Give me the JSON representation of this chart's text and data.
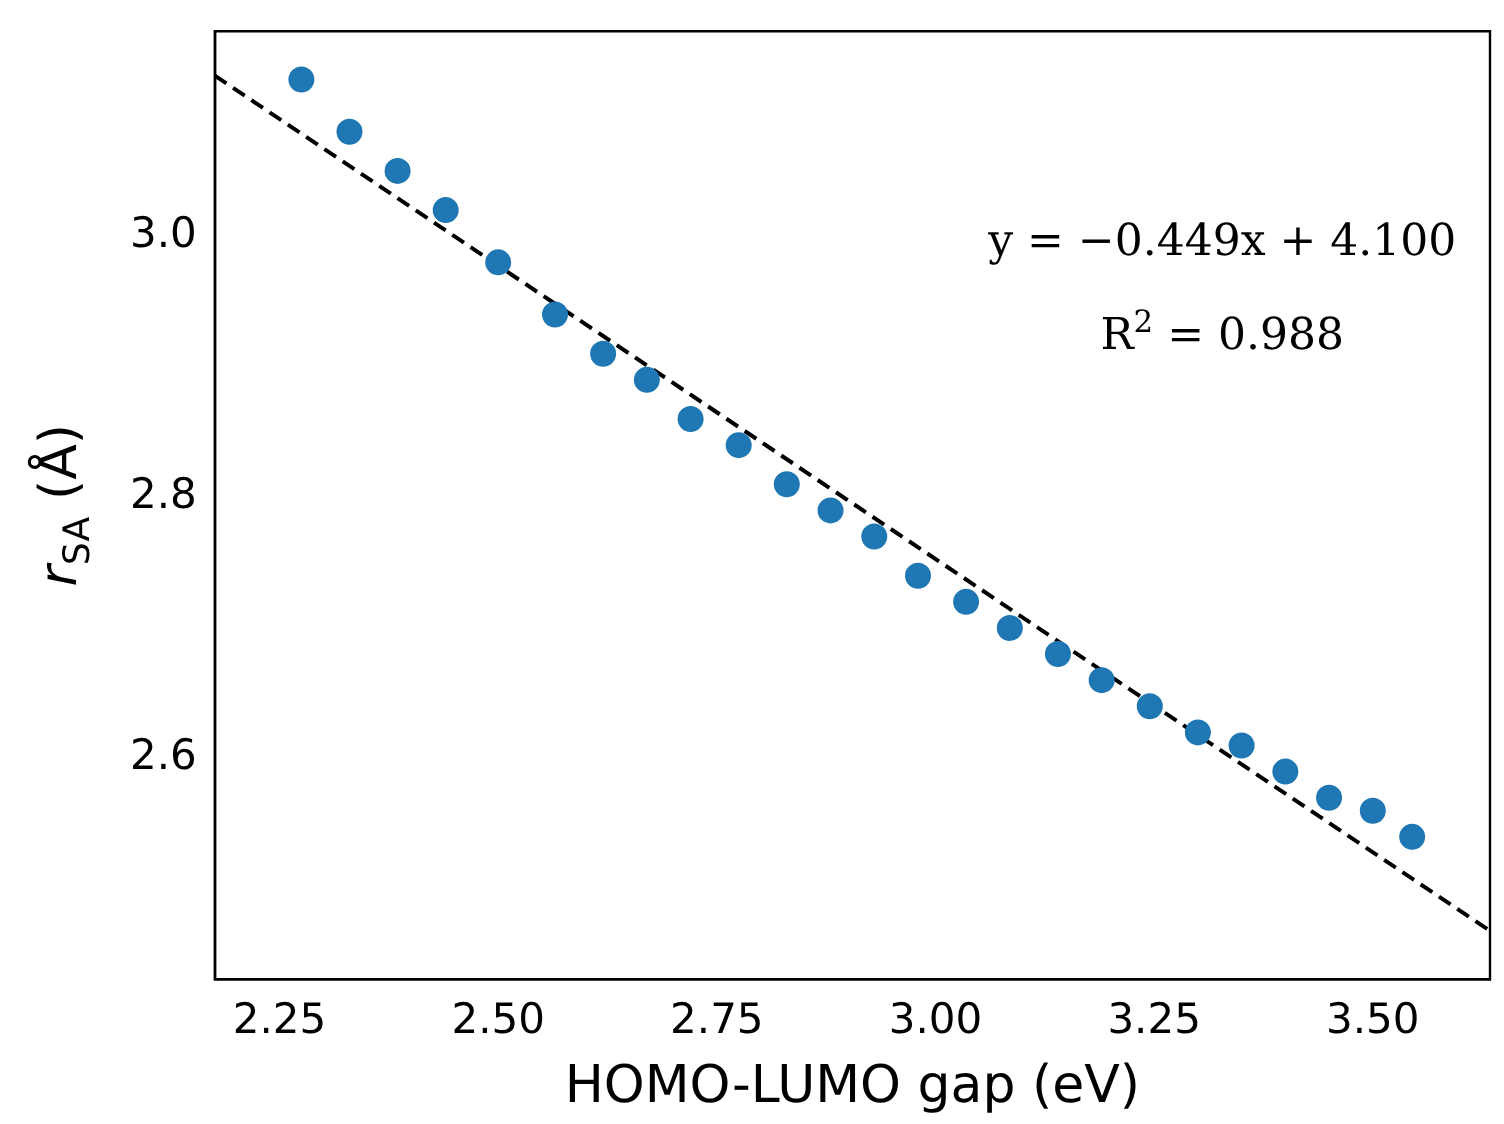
{
  "chart_data": {
    "type": "scatter",
    "xlabel": "HOMO-LUMO gap (eV)",
    "ylabel": "r$_{SA}$ (Å)",
    "x": [
      2.275,
      2.33,
      2.385,
      2.44,
      2.5,
      2.565,
      2.62,
      2.67,
      2.72,
      2.775,
      2.83,
      2.88,
      2.93,
      2.98,
      3.035,
      3.085,
      3.14,
      3.19,
      3.245,
      3.3,
      3.35,
      3.4,
      3.45,
      3.5,
      3.545
    ],
    "series": [
      {
        "color": "#1f77b4",
        "marker": "circle",
        "values": [
          3.12,
          3.08,
          3.05,
          3.02,
          2.98,
          2.94,
          2.91,
          2.89,
          2.86,
          2.84,
          2.81,
          2.79,
          2.77,
          2.74,
          2.72,
          2.7,
          2.68,
          2.66,
          2.64,
          2.62,
          2.61,
          2.59,
          2.57,
          2.56,
          2.54
        ]
      },
      {
        "type": "line",
        "color": "#000000",
        "line_style": "dashed",
        "marker": "none",
        "x": [
          2.176,
          3.634
        ],
        "values": [
          3.123,
          2.468
        ]
      }
    ],
    "xlim": [
      2.176,
      3.634
    ],
    "xticks": [
      2.25,
      {
        "value": 2.5,
        "label": "2.50"
      },
      2.75,
      {
        "value": 3,
        "label": "3.00"
      },
      3.25,
      {
        "value": 3.5,
        "label": "3.50"
      }
    ],
    "ylim": [
      2.431,
      3.157
    ],
    "yticks": [
      2.6,
      2.8,
      {
        "value": 3,
        "label": "3.0"
      }
    ],
    "annotations": [
      "y = −0.449x + 4.100",
      "R$^{2}$ = 0.988"
    ],
    "grid": false,
    "legend": false
  }
}
